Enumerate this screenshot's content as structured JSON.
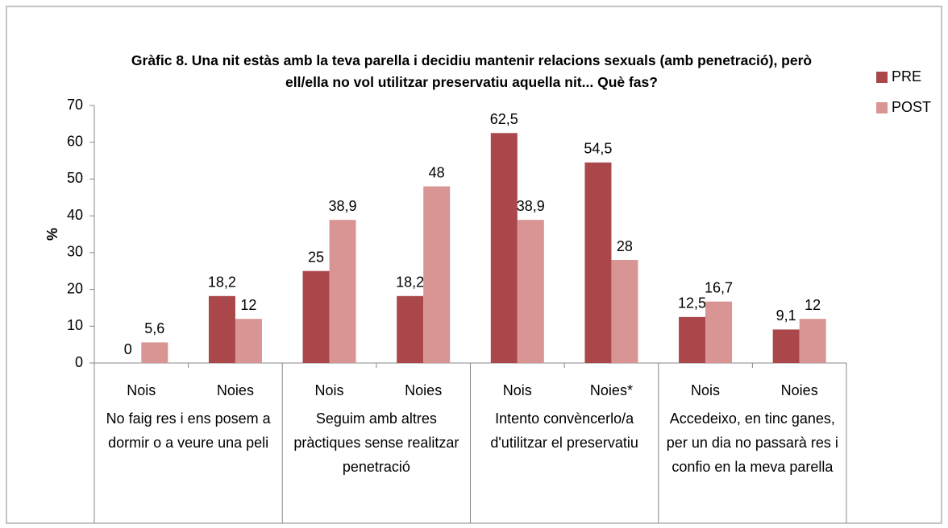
{
  "chart_data": {
    "type": "bar",
    "title": "Gràfic 8. Una nit estàs amb la teva parella i decidiu mantenir relacions sexuals (amb penetració), però ell/ella no vol utilitzar preservatiu aquella nit... Què fas?",
    "y_label": "%",
    "categories": [
      "Nois",
      "Noies",
      "Nois",
      "Noies",
      "Nois",
      "Noies*",
      "Nois",
      "Noies"
    ],
    "groups": [
      "No faig res i ens posem a dormir o a veure una peli",
      "Seguim amb altres pràctiques sense realitzar penetració",
      "Intento convèncerlo/a d'utilitzar el preservatiu",
      "Accedeixo, en tinc ganes, per un dia no passarà res i confio en la meva parella"
    ],
    "series": [
      {
        "name": "PRE",
        "color": "#a9474a",
        "values": [
          0,
          18.2,
          25,
          18.2,
          62.5,
          54.5,
          12.5,
          9.1
        ],
        "value_labels": [
          "0",
          "18,2",
          "25",
          "18,2",
          "62,5",
          "54,5",
          "12,5",
          "9,1"
        ]
      },
      {
        "name": "POST",
        "color": "#d99594",
        "values": [
          5.6,
          12,
          38.9,
          48,
          38.9,
          28,
          16.7,
          12
        ],
        "value_labels": [
          "5,6",
          "12",
          "38,9",
          "48",
          "38,9",
          "28",
          "16,7",
          "12"
        ]
      }
    ],
    "ylim": [
      0,
      70
    ],
    "yticks": [
      0,
      10,
      20,
      30,
      40,
      50,
      60,
      70
    ],
    "grid": false,
    "legend": "right"
  }
}
